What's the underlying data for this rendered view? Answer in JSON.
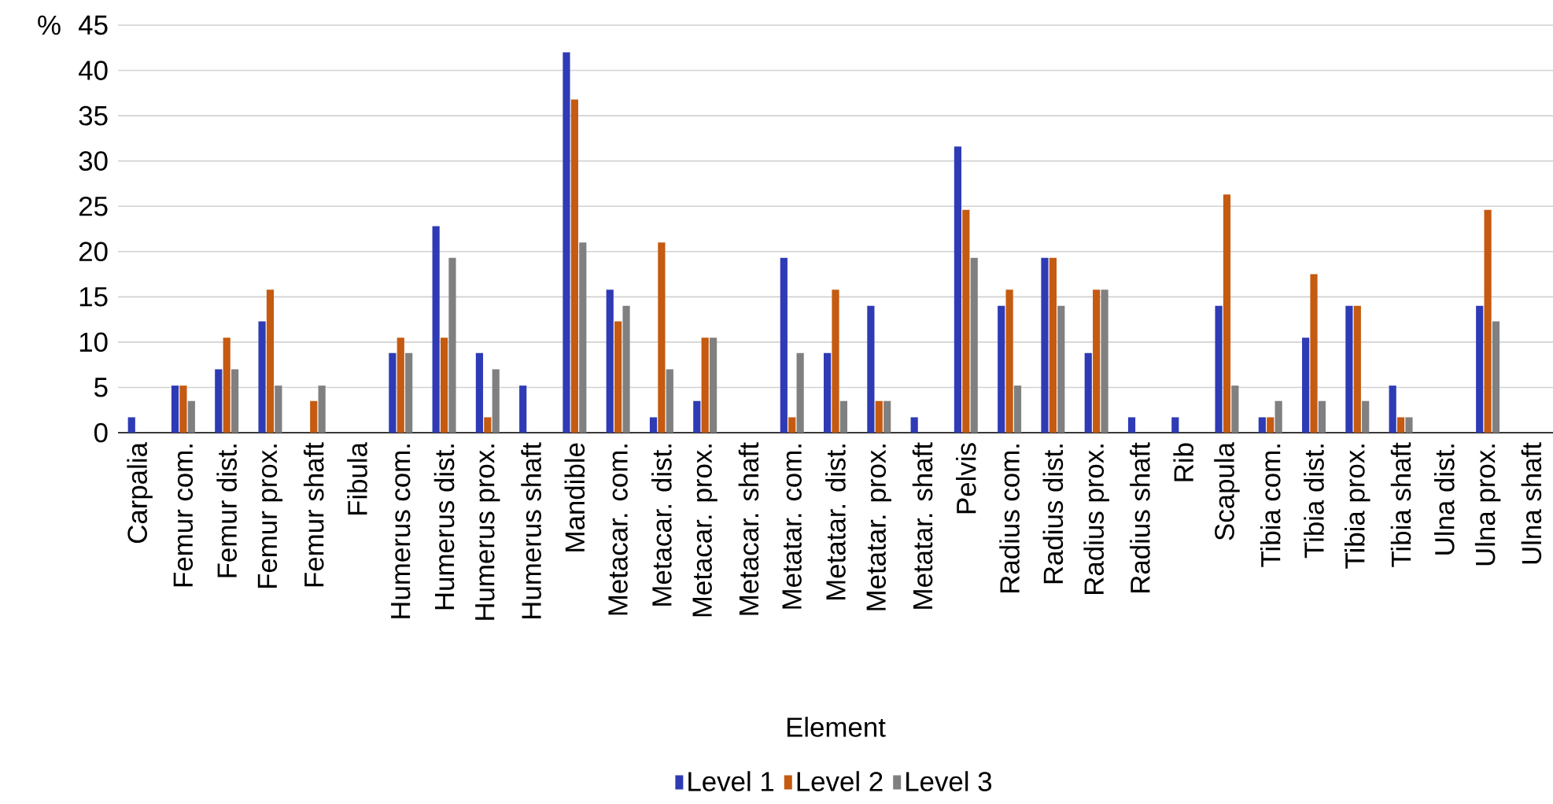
{
  "chart_data": {
    "type": "bar",
    "xlabel": "Element",
    "ylabel": "%",
    "categories": [
      "Carpalia",
      "Femur com.",
      "Femur dist.",
      "Femur prox.",
      "Femur shaft",
      "Fibula",
      "Humerus com.",
      "Humerus dist.",
      "Humerus prox.",
      "Humerus shaft",
      "Mandible",
      "Metacar. com.",
      "Metacar. dist.",
      "Metacar. prox.",
      "Metacar. shaft",
      "Metatar. com.",
      "Metatar. dist.",
      "Metatar. prox.",
      "Metatar. shaft",
      "Pelvis",
      "Radius com.",
      "Radius dist.",
      "Radius prox.",
      "Radius shaft",
      "Rib",
      "Scapula",
      "Tibia com.",
      "Tibia dist.",
      "Tibia prox.",
      "Tibia shaft",
      "Ulna dist.",
      "Ulna prox.",
      "Ulna shaft"
    ],
    "series": [
      {
        "name": "Level 1",
        "color": "#2e3bb5",
        "values": [
          1.7,
          5.2,
          7,
          12.3,
          null,
          null,
          8.8,
          22.8,
          8.8,
          5.2,
          42,
          15.8,
          1.7,
          3.5,
          null,
          19.3,
          8.8,
          14,
          1.7,
          31.6,
          14,
          19.3,
          8.8,
          1.7,
          1.7,
          14,
          1.7,
          10.5,
          14,
          5.2,
          null,
          14,
          null
        ]
      },
      {
        "name": "Level 2",
        "color": "#c55a11",
        "values": [
          null,
          5.2,
          10.5,
          15.8,
          3.5,
          null,
          10.5,
          10.5,
          1.7,
          null,
          36.8,
          12.3,
          21,
          10.5,
          null,
          1.7,
          15.8,
          3.5,
          null,
          24.6,
          15.8,
          19.3,
          15.8,
          null,
          null,
          26.3,
          1.7,
          17.5,
          14,
          1.7,
          null,
          24.6,
          null
        ]
      },
      {
        "name": "Level 3",
        "color": "#808080",
        "values": [
          null,
          3.5,
          7,
          5.2,
          5.2,
          null,
          8.8,
          19.3,
          7,
          null,
          21,
          14,
          7,
          10.5,
          null,
          8.8,
          3.5,
          3.5,
          null,
          19.3,
          5.2,
          14,
          15.8,
          null,
          null,
          5.2,
          3.5,
          3.5,
          3.5,
          1.7,
          null,
          12.3,
          null
        ]
      }
    ],
    "ylim": [
      0,
      45
    ],
    "yticks": [
      0,
      5,
      10,
      15,
      20,
      25,
      30,
      35,
      40,
      45
    ],
    "grid": "y",
    "legend": "bottom"
  }
}
